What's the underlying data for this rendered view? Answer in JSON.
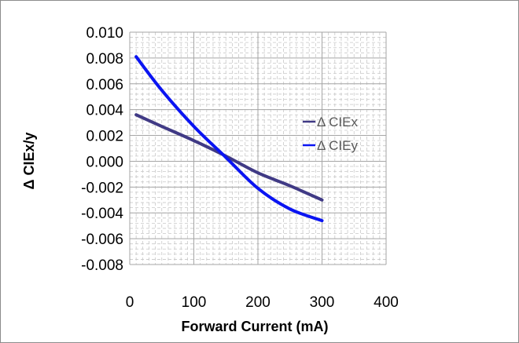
{
  "chart_data": {
    "type": "line",
    "title": "",
    "xlabel": "Forward Current (mA)",
    "ylabel": "Δ CIEx/y",
    "xlim": [
      0,
      400
    ],
    "ylim": [
      -0.008,
      0.01
    ],
    "x_ticks": [
      "0",
      "100",
      "200",
      "300",
      "400"
    ],
    "y_ticks": [
      "0.010",
      "0.008",
      "0.006",
      "0.004",
      "0.002",
      "0.000",
      "-0.002",
      "-0.004",
      "-0.006",
      "-0.008"
    ],
    "grid": true,
    "legend_position": "inside-right",
    "series": [
      {
        "name": "Δ CIEx",
        "color": "#403a85",
        "points": [
          [
            10,
            0.0036
          ],
          [
            50,
            0.0027
          ],
          [
            100,
            0.0016
          ],
          [
            150,
            0.0004
          ],
          [
            200,
            -0.0009
          ],
          [
            250,
            -0.0019
          ],
          [
            300,
            -0.003
          ]
        ]
      },
      {
        "name": "Δ CIEy",
        "color": "#0a14f2",
        "points": [
          [
            10,
            0.0081
          ],
          [
            50,
            0.0055
          ],
          [
            100,
            0.0027
          ],
          [
            150,
            0.0003
          ],
          [
            200,
            -0.0021
          ],
          [
            250,
            -0.0037
          ],
          [
            300,
            -0.0046
          ]
        ]
      }
    ]
  }
}
